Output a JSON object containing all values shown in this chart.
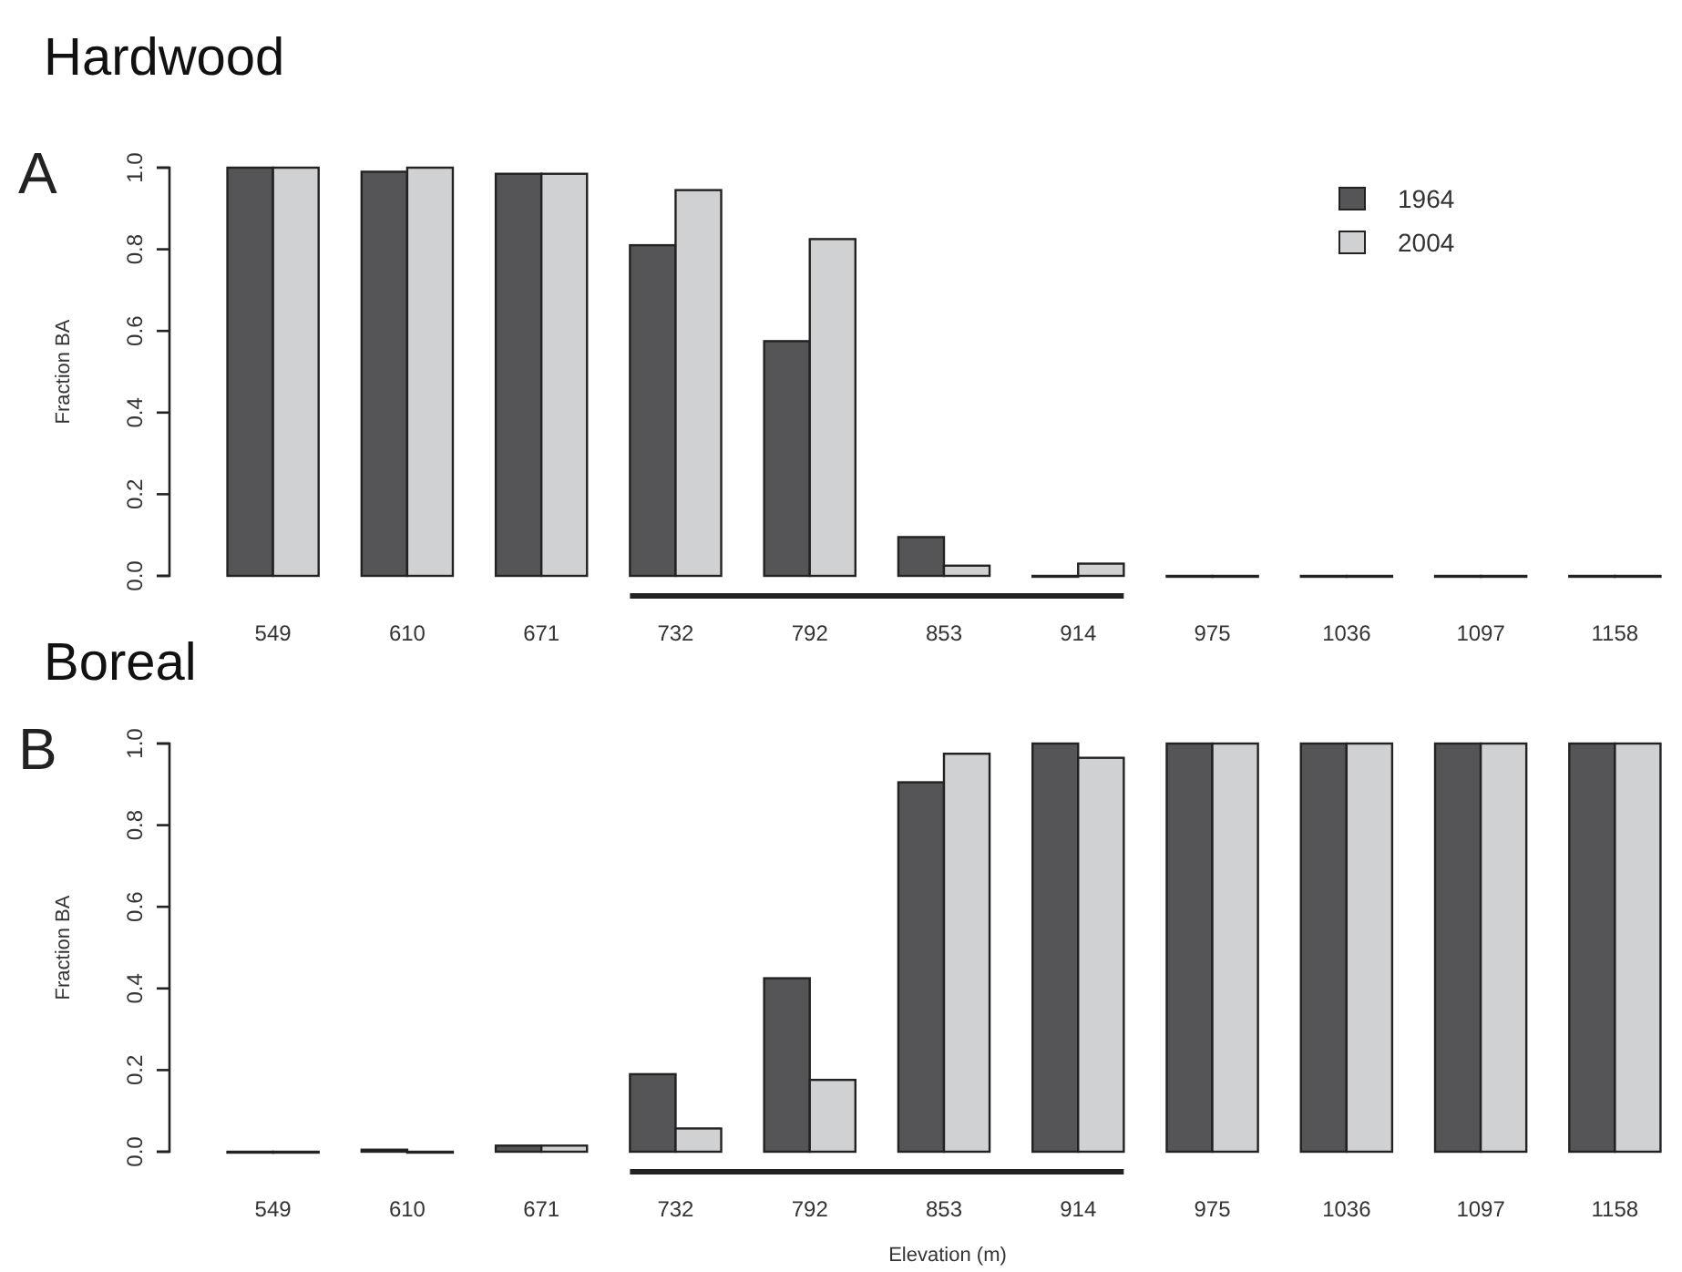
{
  "chart_data": [
    {
      "type": "bar",
      "title": "Hardwood",
      "ylabel": "Fraction BA",
      "annotations": [
        "A"
      ],
      "categories": [
        "549",
        "610",
        "671",
        "732",
        "792",
        "853",
        "914",
        "975",
        "1036",
        "1097",
        "1158"
      ],
      "series": [
        {
          "name": "1964",
          "color": "#555557",
          "values": [
            1.0,
            0.99,
            0.985,
            0.81,
            0.575,
            0.095,
            0,
            0,
            0,
            0,
            0
          ]
        },
        {
          "name": "2004",
          "color": "#d0d1d3",
          "values": [
            1.0,
            1.0,
            0.985,
            0.945,
            0.825,
            0.025,
            0.03,
            0,
            0,
            0,
            0
          ]
        }
      ],
      "ylim": [
        0,
        1
      ],
      "yticks": [
        {
          "value": 0,
          "label": "0.0"
        },
        {
          "value": 0.2,
          "label": "0.2"
        },
        {
          "value": 0.4,
          "label": "0.4"
        },
        {
          "value": 0.6,
          "label": "0.6"
        },
        {
          "value": 0.8,
          "label": "0.8"
        },
        {
          "value": 1,
          "label": "1.0"
        }
      ],
      "legend": "top right",
      "grid": false
    },
    {
      "type": "bar",
      "title": "Boreal",
      "ylabel": "Fraction BA",
      "xlabel": "Elevation (m)",
      "annotations": [
        "B"
      ],
      "categories": [
        "549",
        "610",
        "671",
        "732",
        "792",
        "853",
        "914",
        "975",
        "1036",
        "1097",
        "1158"
      ],
      "series": [
        {
          "color": "#555557",
          "values": [
            0,
            0.005,
            0.015,
            0.19,
            0.425,
            0.905,
            1.0,
            1.0,
            1.0,
            1.0,
            1.0
          ]
        },
        {
          "color": "#d0d1d3",
          "values": [
            0,
            0,
            0.015,
            0.057,
            0.176,
            0.975,
            0.965,
            1.0,
            1.0,
            1.0,
            1.0
          ]
        }
      ],
      "ylim": [
        0,
        1
      ],
      "yticks": [
        {
          "value": 0,
          "label": "0.0"
        },
        {
          "value": 0.2,
          "label": "0.2"
        },
        {
          "value": 0.4,
          "label": "0.4"
        },
        {
          "value": 0.6,
          "label": "0.6"
        },
        {
          "value": 0.8,
          "label": "0.8"
        },
        {
          "value": 1,
          "label": "1.0"
        }
      ],
      "legend": false,
      "grid": false
    }
  ]
}
